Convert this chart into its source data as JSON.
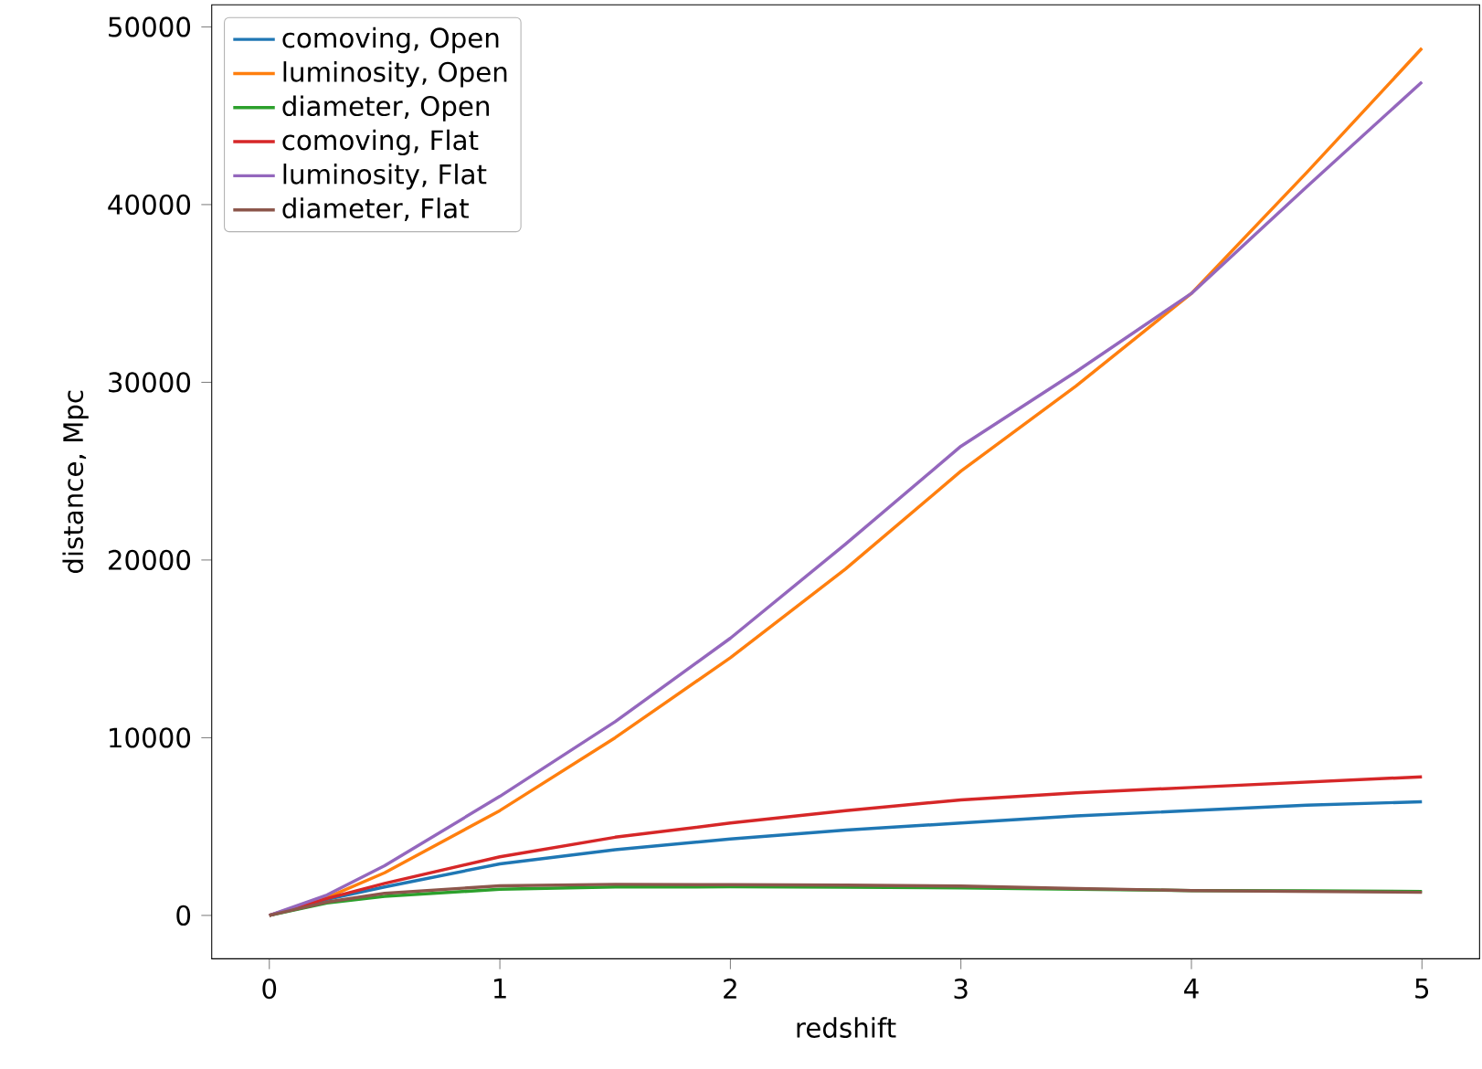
{
  "chart_data": {
    "type": "line",
    "xlabel": "redshift",
    "ylabel": "distance, Mpc",
    "x": [
      0,
      0.25,
      0.5,
      1,
      1.5,
      2,
      2.5,
      3,
      3.5,
      4,
      4.5,
      5
    ],
    "series": [
      {
        "name": "comoving, Open",
        "color": "#1f77b4",
        "values": [
          0,
          900,
          1600,
          2900,
          3700,
          4300,
          4800,
          5200,
          5600,
          5900,
          6200,
          6400
        ]
      },
      {
        "name": "luminosity, Open",
        "color": "#ff7f0e",
        "values": [
          0,
          1000,
          2400,
          5900,
          10000,
          14500,
          19500,
          25000,
          29800,
          35000,
          41800,
          48800
        ]
      },
      {
        "name": "diameter, Open",
        "color": "#2ca02c",
        "values": [
          0,
          700,
          1070,
          1470,
          1600,
          1610,
          1590,
          1550,
          1470,
          1400,
          1380,
          1350
        ]
      },
      {
        "name": "comoving, Flat",
        "color": "#d62728",
        "values": [
          0,
          950,
          1800,
          3300,
          4400,
          5200,
          5900,
          6500,
          6900,
          7200,
          7500,
          7800
        ]
      },
      {
        "name": "luminosity, Flat",
        "color": "#9467bd",
        "values": [
          0,
          1150,
          2800,
          6700,
          10900,
          15600,
          20900,
          26400,
          30600,
          35000,
          41000,
          46900
        ]
      },
      {
        "name": "diameter, Flat",
        "color": "#8c564b",
        "values": [
          0,
          750,
          1240,
          1670,
          1750,
          1730,
          1700,
          1650,
          1510,
          1400,
          1350,
          1300
        ]
      }
    ],
    "xlim": [
      -0.25,
      5.25
    ],
    "ylim": [
      -2440,
      51240
    ],
    "xticks": [
      0,
      1,
      2,
      3,
      4,
      5
    ],
    "yticks": [
      0,
      10000,
      20000,
      30000,
      40000,
      50000
    ],
    "legend": "top left",
    "grid": false,
    "marker": "none",
    "line_style": "solid"
  }
}
